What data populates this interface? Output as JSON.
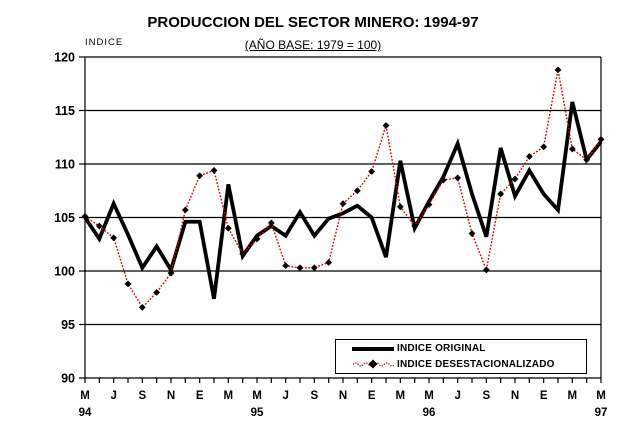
{
  "chart_data": {
    "type": "line",
    "title": "PRODUCCION DEL SECTOR MINERO: 1994-97",
    "subtitle": "(AÑO BASE: 1979 = 100)",
    "ylabel": "INDICE",
    "ylim": [
      90,
      120
    ],
    "yticks": [
      90,
      95,
      100,
      105,
      110,
      115,
      120
    ],
    "grid": "horizontal",
    "legend_position": "bottom-right-inside",
    "x_labels": [
      {
        "pos": 0,
        "text": "M"
      },
      {
        "pos": 2,
        "text": "J"
      },
      {
        "pos": 4,
        "text": "S"
      },
      {
        "pos": 6,
        "text": "N"
      },
      {
        "pos": 8,
        "text": "E"
      },
      {
        "pos": 10,
        "text": "M"
      },
      {
        "pos": 12,
        "text": "M"
      },
      {
        "pos": 14,
        "text": "J"
      },
      {
        "pos": 16,
        "text": "S"
      },
      {
        "pos": 18,
        "text": "N"
      },
      {
        "pos": 20,
        "text": "E"
      },
      {
        "pos": 22,
        "text": "M"
      },
      {
        "pos": 24,
        "text": "M"
      },
      {
        "pos": 26,
        "text": "J"
      },
      {
        "pos": 28,
        "text": "S"
      },
      {
        "pos": 30,
        "text": "N"
      },
      {
        "pos": 32,
        "text": "E"
      },
      {
        "pos": 34,
        "text": "M"
      },
      {
        "pos": 36,
        "text": "M"
      }
    ],
    "year_labels": [
      {
        "pos": 0,
        "text": "94"
      },
      {
        "pos": 12,
        "text": "95"
      },
      {
        "pos": 24,
        "text": "96"
      },
      {
        "pos": 36,
        "text": "97"
      }
    ],
    "series": [
      {
        "name": "INDICE ORIGINAL",
        "color": "#000000",
        "style": "solid",
        "line_width": 3.8,
        "values": [
          105.0,
          103.0,
          106.3,
          103.4,
          100.3,
          102.3,
          100.1,
          104.6,
          104.6,
          97.4,
          108.1,
          101.4,
          103.3,
          104.2,
          103.3,
          105.5,
          103.3,
          104.9,
          105.4,
          106.1,
          105.0,
          101.3,
          110.3,
          104.0,
          106.5,
          108.8,
          111.9,
          107.2,
          103.2,
          111.5,
          107.0,
          109.4,
          107.2,
          105.7,
          115.8,
          110.4,
          112.1
        ]
      },
      {
        "name": "INDICE DESESTACIONALIZADO",
        "color": "#e00000",
        "style": "dotted",
        "line_width": 1.4,
        "marker": "diamond",
        "marker_color": "#000000",
        "values": [
          105.1,
          104.2,
          103.1,
          98.8,
          96.6,
          98.0,
          99.8,
          105.7,
          108.9,
          109.4,
          104.0,
          101.6,
          103.0,
          104.5,
          100.5,
          100.3,
          100.3,
          100.8,
          106.3,
          107.5,
          109.3,
          113.6,
          106.0,
          104.2,
          106.2,
          108.5,
          108.7,
          103.5,
          100.1,
          107.2,
          108.6,
          110.7,
          111.6,
          118.8,
          111.4,
          110.4,
          112.3
        ]
      }
    ]
  }
}
